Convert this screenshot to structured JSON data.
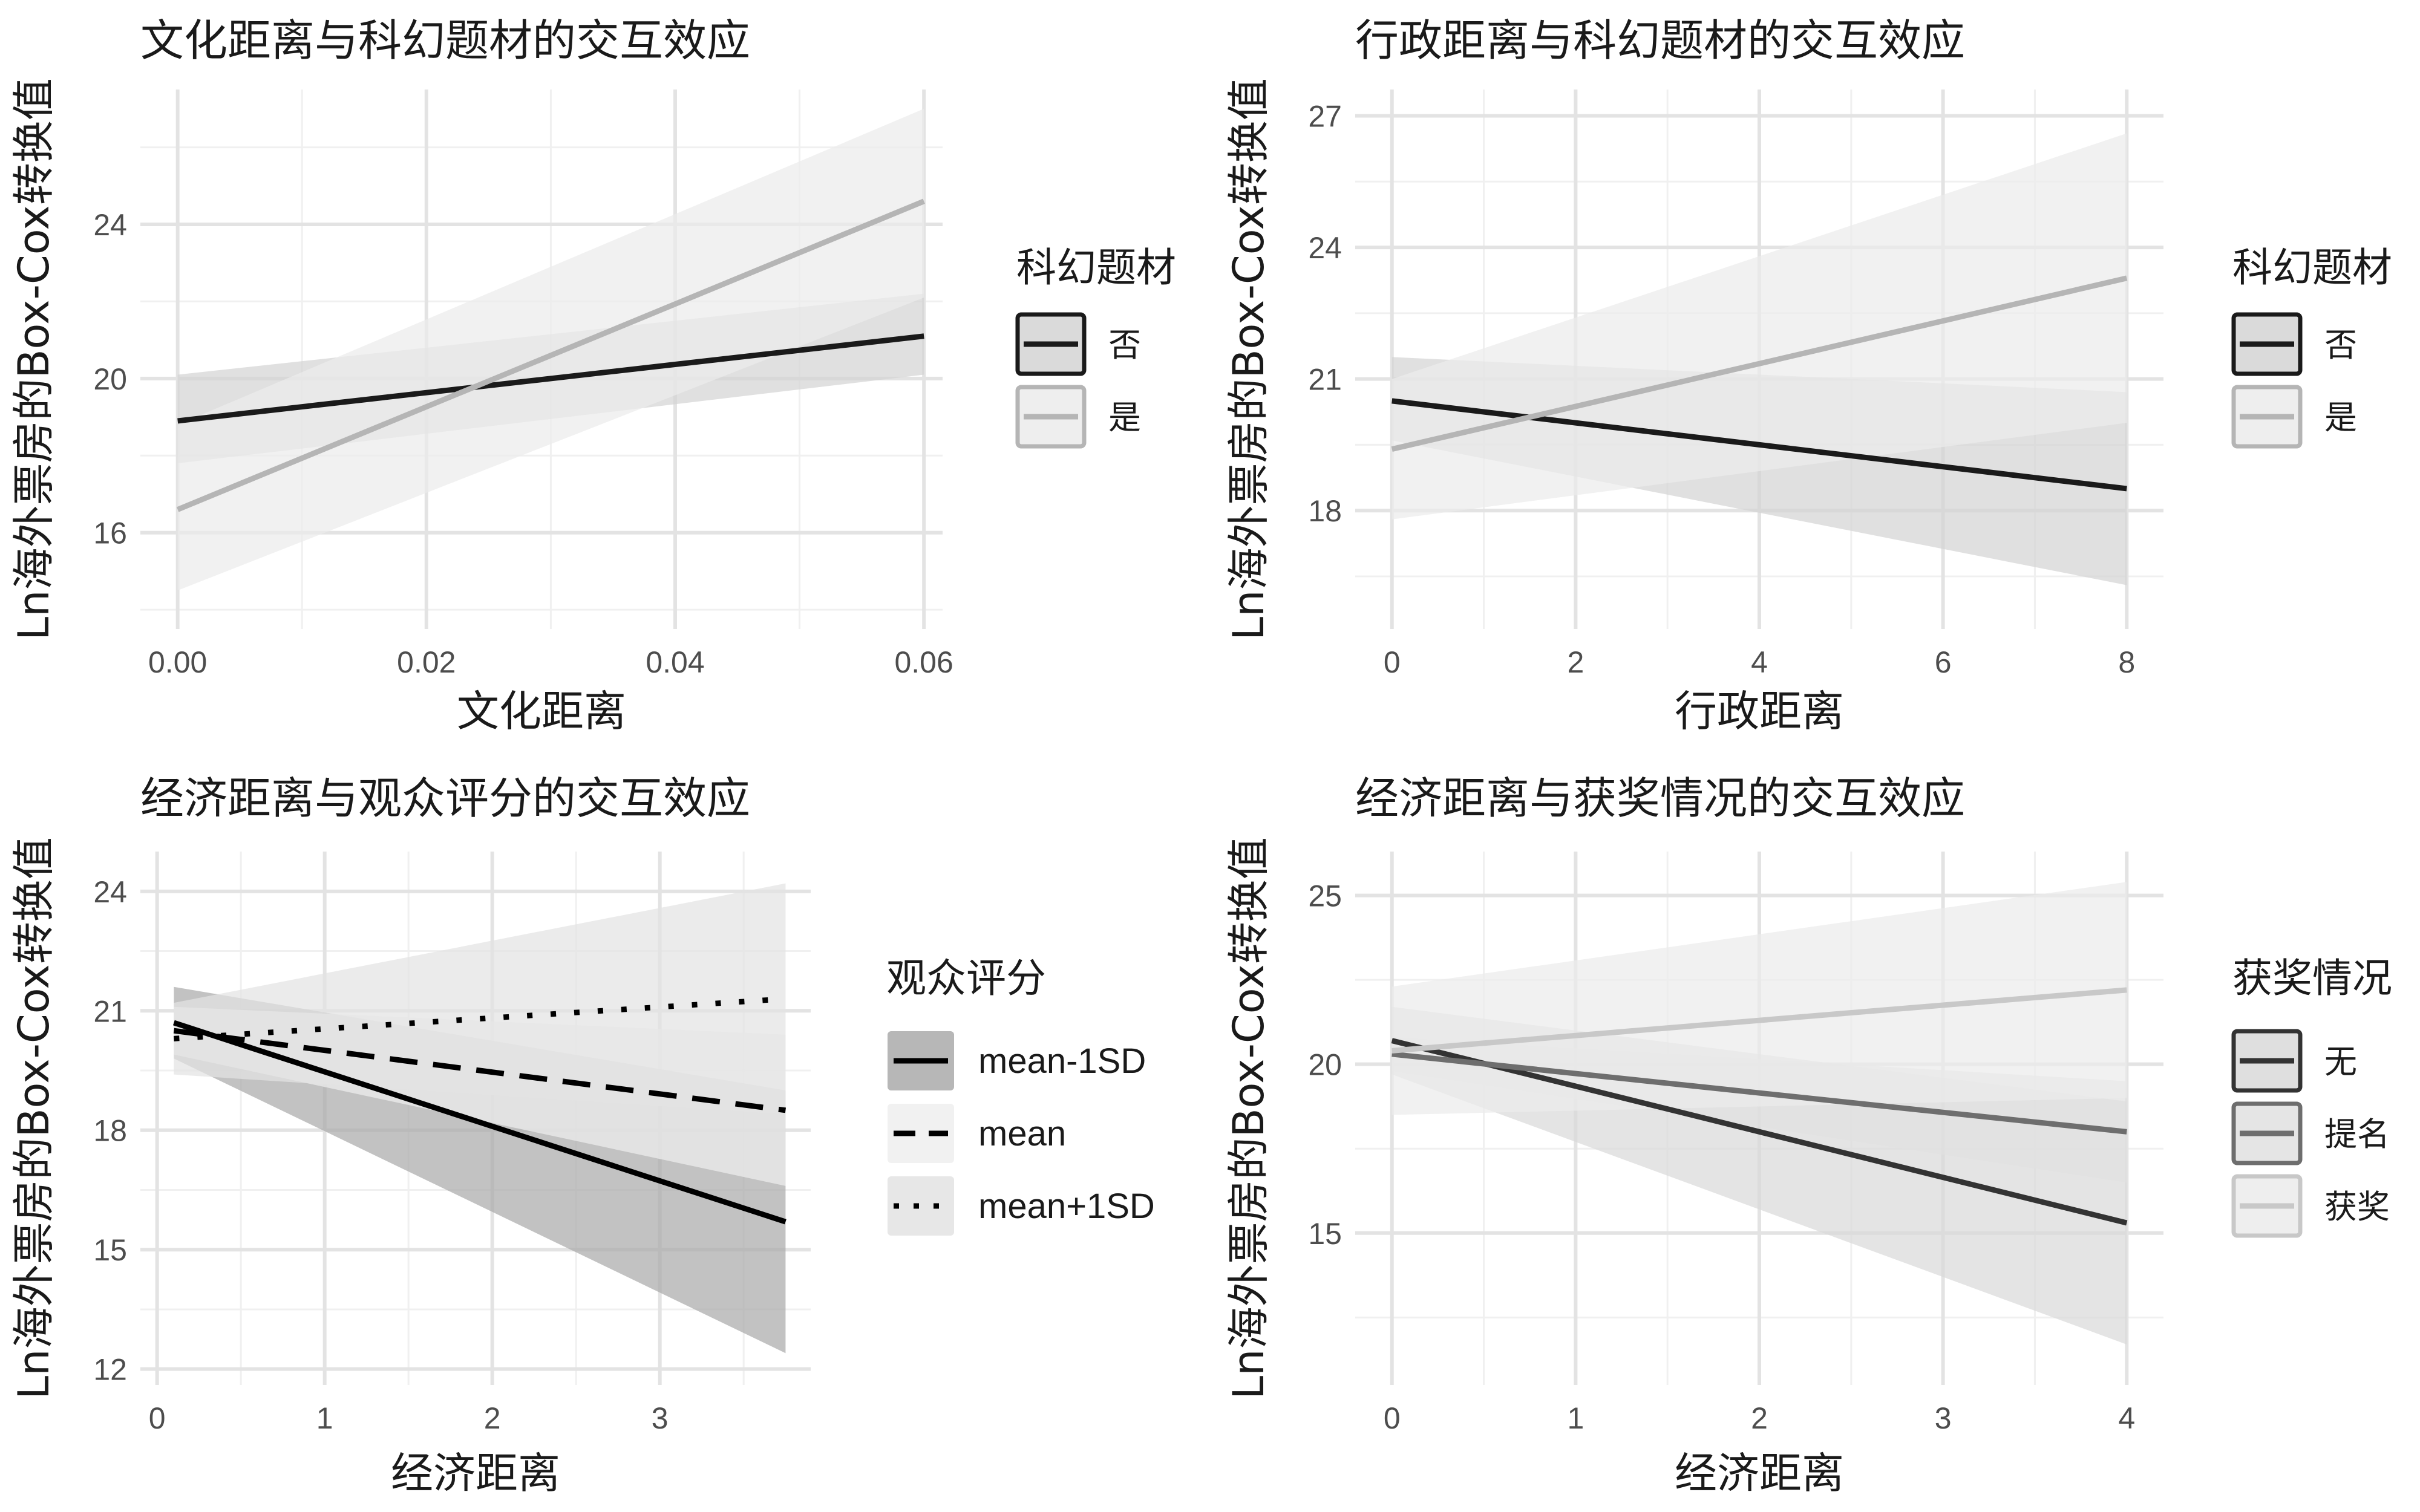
{
  "y_axis_label": "Ln海外票房的Box-Cox转换值",
  "chart_data": [
    {
      "type": "line",
      "title": "文化距离与科幻题材的交互效应",
      "xlabel": "文化距离",
      "ylabel": "Ln海外票房的Box-Cox转换值",
      "xlim": [
        -0.003,
        0.0615
      ],
      "ylim": [
        13.5,
        27.5
      ],
      "xticks": [
        0.0,
        0.02,
        0.04,
        0.06
      ],
      "xtick_labels": [
        "0.00",
        "0.02",
        "0.04",
        "0.06"
      ],
      "yticks": [
        16,
        20,
        24
      ],
      "legend_title": "科幻题材",
      "series": [
        {
          "name": "否",
          "x": [
            0.0,
            0.06
          ],
          "y": [
            18.9,
            21.1
          ],
          "lower": [
            17.8,
            20.1
          ],
          "upper": [
            20.1,
            22.2
          ],
          "color": "#1a1a1a",
          "band": "#d4d4d4",
          "dash": "solid"
        },
        {
          "name": "是",
          "x": [
            0.0,
            0.06
          ],
          "y": [
            16.6,
            24.6
          ],
          "lower": [
            14.5,
            22.1
          ],
          "upper": [
            18.8,
            27.0
          ],
          "color": "#b5b5b5",
          "band": "#ebebeb",
          "dash": "solid"
        }
      ]
    },
    {
      "type": "line",
      "title": "行政距离与科幻题材的交互效应",
      "xlabel": "行政距离",
      "ylabel": "Ln海外票房的Box-Cox转换值",
      "xlim": [
        -0.4,
        8.4
      ],
      "ylim": [
        15.3,
        27.6
      ],
      "xticks": [
        0,
        2,
        4,
        6,
        8
      ],
      "xtick_labels": [
        "0",
        "2",
        "4",
        "6",
        "8"
      ],
      "yticks": [
        18,
        21,
        24,
        27
      ],
      "legend_title": "科幻题材",
      "series": [
        {
          "name": "否",
          "x": [
            0,
            8
          ],
          "y": [
            20.5,
            18.5
          ],
          "lower": [
            19.6,
            16.3
          ],
          "upper": [
            21.5,
            20.7
          ],
          "color": "#1a1a1a",
          "band": "#d4d4d4",
          "dash": "solid"
        },
        {
          "name": "是",
          "x": [
            0,
            8
          ],
          "y": [
            19.4,
            23.3
          ],
          "lower": [
            17.8,
            20.0
          ],
          "upper": [
            21.0,
            26.6
          ],
          "color": "#b5b5b5",
          "band": "#ebebeb",
          "dash": "solid"
        }
      ]
    },
    {
      "type": "line",
      "title": "经济距离与观众评分的交互效应",
      "xlabel": "经济距离",
      "ylabel": "Ln海外票房的Box-Cox转换值",
      "xlim": [
        -0.1,
        3.9
      ],
      "ylim": [
        11.6,
        25.0
      ],
      "xticks": [
        0,
        1,
        2,
        3
      ],
      "xtick_labels": [
        "0",
        "1",
        "2",
        "3"
      ],
      "yticks": [
        12,
        15,
        18,
        21,
        24
      ],
      "legend_title": "观众评分",
      "series": [
        {
          "name": "mean-1SD",
          "x": [
            0.1,
            3.75
          ],
          "y": [
            20.7,
            15.7
          ],
          "lower": [
            19.8,
            12.4
          ],
          "upper": [
            21.6,
            19.0
          ],
          "color": "#000000",
          "band": "#aaaaaa",
          "dash": "solid"
        },
        {
          "name": "mean",
          "x": [
            0.1,
            3.75
          ],
          "y": [
            20.5,
            18.5
          ],
          "lower": [
            19.9,
            16.6
          ],
          "upper": [
            21.1,
            20.4
          ],
          "color": "#000000",
          "band": "#efefef",
          "dash": "dashed"
        },
        {
          "name": "mean+1SD",
          "x": [
            0.1,
            3.75
          ],
          "y": [
            20.3,
            21.3
          ],
          "lower": [
            19.4,
            18.4
          ],
          "upper": [
            21.2,
            24.2
          ],
          "color": "#000000",
          "band": "#e3e3e3",
          "dash": "dotted"
        }
      ]
    },
    {
      "type": "line",
      "title": "经济距离与获奖情况的交互效应",
      "xlabel": "经济距离",
      "ylabel": "Ln海外票房的Box-Cox转换值",
      "xlim": [
        -0.2,
        4.2
      ],
      "ylim": [
        10.5,
        26.3
      ],
      "xticks": [
        0,
        1,
        2,
        3,
        4
      ],
      "xtick_labels": [
        "0",
        "1",
        "2",
        "3",
        "4"
      ],
      "yticks": [
        15,
        20,
        25
      ],
      "legend_title": "获奖情况",
      "series": [
        {
          "name": "无",
          "x": [
            0,
            4
          ],
          "y": [
            20.7,
            15.3
          ],
          "lower": [
            19.7,
            11.7
          ],
          "upper": [
            21.7,
            18.9
          ],
          "color": "#333333",
          "band": "#d9d9d9",
          "dash": "solid"
        },
        {
          "name": "提名",
          "x": [
            0,
            4
          ],
          "y": [
            20.3,
            18.0
          ],
          "lower": [
            19.8,
            16.5
          ],
          "upper": [
            20.8,
            19.5
          ],
          "color": "#6e6e6e",
          "band": "#e0e0e0",
          "dash": "solid"
        },
        {
          "name": "获奖",
          "x": [
            0,
            4
          ],
          "y": [
            20.4,
            22.2
          ],
          "lower": [
            18.5,
            19.0
          ],
          "upper": [
            22.3,
            25.4
          ],
          "color": "#c8c8c8",
          "band": "#ebebeb",
          "dash": "solid"
        }
      ]
    }
  ]
}
